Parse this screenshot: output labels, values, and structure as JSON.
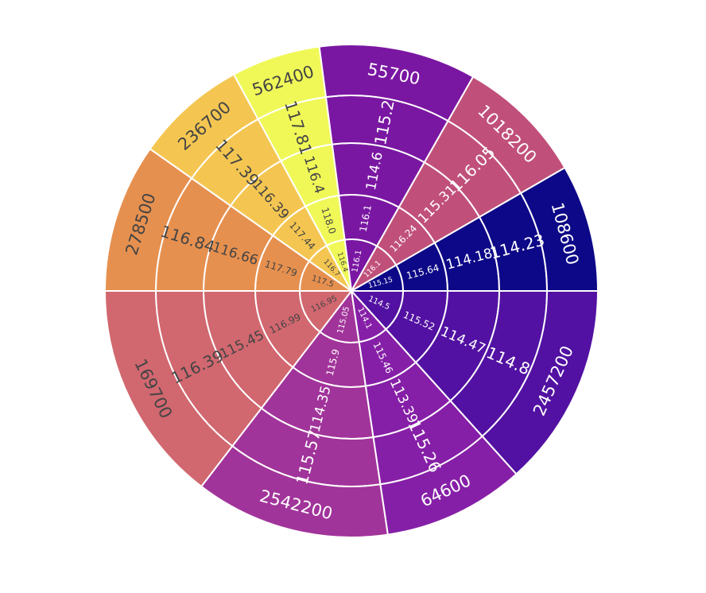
{
  "chart_data": {
    "type": "sunburst",
    "ring_order": "innermost to outermost; each ring lists segments clockwise starting just right of 12 o'clock, all rings aligned to the outer sectors",
    "sectors": [
      {
        "values": [
          "116.1",
          "116.1",
          "114.6",
          "115.2",
          "55700"
        ],
        "color": "#7a17a2",
        "text_color": "#ffffff"
      },
      {
        "values": [
          "116.1",
          "116.24",
          "115.31",
          "116.05",
          "1018200"
        ],
        "color": "#c0507a",
        "text_color": "#ffffff"
      },
      {
        "values": [
          "115.15",
          "115.64",
          "114.18",
          "114.23",
          "108600"
        ],
        "color": "#0d0887",
        "text_color": "#ffffff"
      },
      {
        "values": [
          "114.5",
          "115.52",
          "114.47",
          "114.8",
          "2457200"
        ],
        "color": "#5211a2",
        "text_color": "#ffffff"
      },
      {
        "values": [
          "114.1",
          "115.46",
          "113.39",
          "115.26",
          "64600"
        ],
        "color": "#861fa7",
        "text_color": "#ffffff"
      },
      {
        "values": [
          "115.05",
          "115.9",
          "114.35",
          "115.57",
          "2542200"
        ],
        "color": "#a1349a",
        "text_color": "#ffffff"
      },
      {
        "values": [
          "116.95",
          "116.99",
          "115.45",
          "116.39",
          "169700"
        ],
        "color": "#d1676f",
        "text_color": "#444444"
      },
      {
        "values": [
          "117.5",
          "117.79",
          "116.66",
          "116.84",
          "278500"
        ],
        "color": "#e6904f",
        "text_color": "#444444"
      },
      {
        "values": [
          "116.7",
          "117.44",
          "116.39",
          "117.39",
          "236700"
        ],
        "color": "#f4c651",
        "text_color": "#444444"
      },
      {
        "values": [
          "116.4",
          "118.0",
          "116.4",
          "117.81",
          "562400"
        ],
        "color": "#f0f858",
        "text_color": "#444444"
      }
    ]
  }
}
